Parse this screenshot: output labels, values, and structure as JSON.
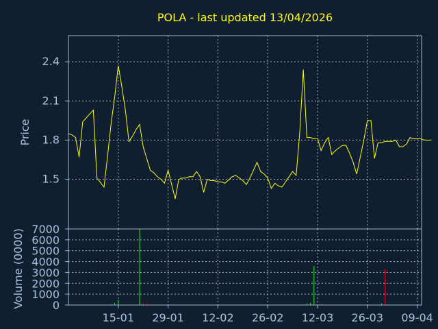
{
  "chart_data": {
    "type": "line",
    "title": "POLA - last updated 13/04/2026",
    "colors": {
      "background": "#0f1f30",
      "frame": "#9fb9d3",
      "grid": "#9fb9d3",
      "text": "#a8c4dc",
      "title": "#ffff00",
      "price_line": "#ffff00",
      "volume_up": "#00ff00",
      "volume_down": "#ff0000"
    },
    "grid": true,
    "x_tick_labels": [
      "15-01",
      "29-01",
      "12-02",
      "26-02",
      "12-03",
      "26-03",
      "09-04"
    ],
    "price_panel": {
      "ylabel": "Price",
      "ylim": [
        1.12,
        2.6
      ],
      "y_ticks": [
        1.5,
        1.8,
        2.1,
        2.4
      ],
      "y_tick_labels": [
        "1.5",
        "1.8",
        "2.1",
        "2.4"
      ],
      "series": [
        {
          "x": [
            "01-01",
            "02-01",
            "03-01",
            "04-01",
            "05-01",
            "06-01",
            "08-01",
            "09-01",
            "11-01",
            "12-01",
            "13-01",
            "14-01",
            "15-01",
            "16-01",
            "17-01",
            "18-01",
            "19-01",
            "20-01",
            "21-01",
            "22-01",
            "23-01",
            "24-01",
            "25-01",
            "26-01",
            "27-01",
            "28-01",
            "29-01",
            "31-01",
            "01-02",
            "02-02",
            "03-02",
            "04-02",
            "05-02",
            "06-02",
            "07-02",
            "08-02",
            "09-02",
            "10-02",
            "11-02",
            "12-02",
            "13-02",
            "14-02",
            "16-02",
            "17-02",
            "18-02",
            "19-02",
            "20-02",
            "21-02",
            "22-02",
            "23-02",
            "24-02",
            "25-02",
            "26-02",
            "27-02",
            "28-02",
            "01-03",
            "02-03",
            "03-03",
            "04-03",
            "05-03",
            "06-03",
            "07-03",
            "08-03",
            "09-03",
            "10-03",
            "11-03",
            "12-03",
            "13-03",
            "14-03",
            "15-03",
            "16-03",
            "17-03",
            "18-03",
            "19-03",
            "20-03",
            "21-03",
            "22-03",
            "23-03",
            "24-03",
            "25-03",
            "26-03",
            "27-03",
            "28-03",
            "29-03",
            "30-03",
            "31-03",
            "01-04",
            "02-04",
            "03-04",
            "04-04",
            "05-04",
            "06-04",
            "07-04",
            "08-04",
            "09-04",
            "10-04",
            "11-04",
            "12-04",
            "13-04"
          ],
          "values": [
            1.85,
            1.84,
            1.82,
            1.67,
            1.94,
            1.97,
            2.03,
            1.51,
            1.44,
            1.68,
            1.93,
            2.13,
            2.37,
            2.21,
            2.03,
            1.79,
            1.83,
            1.88,
            1.92,
            1.75,
            1.66,
            1.57,
            1.55,
            1.52,
            1.5,
            1.47,
            1.57,
            1.35,
            1.5,
            1.51,
            1.51,
            1.52,
            1.52,
            1.56,
            1.52,
            1.4,
            1.5,
            1.49,
            1.49,
            1.48,
            1.48,
            1.47,
            1.52,
            1.53,
            1.51,
            1.49,
            1.46,
            1.51,
            1.57,
            1.63,
            1.56,
            1.54,
            1.51,
            1.43,
            1.47,
            1.45,
            1.44,
            1.48,
            1.52,
            1.56,
            1.53,
            1.86,
            2.34,
            1.82,
            1.82,
            1.81,
            1.81,
            1.72,
            1.78,
            1.82,
            1.69,
            1.72,
            1.74,
            1.76,
            1.76,
            1.7,
            1.63,
            1.54,
            1.67,
            1.8,
            1.95,
            1.95,
            1.66,
            1.78,
            1.78,
            1.79,
            1.79,
            1.79,
            1.8,
            1.75,
            1.75,
            1.77,
            1.82,
            1.81,
            1.81,
            1.81,
            1.8,
            1.8,
            1.8
          ]
        }
      ]
    },
    "volume_panel": {
      "ylabel": "Volume (0000)",
      "ylim": [
        0,
        7000
      ],
      "y_ticks": [
        0,
        1000,
        2000,
        3000,
        4000,
        5000,
        6000,
        7000
      ],
      "y_tick_labels": [
        "0",
        "1000",
        "2000",
        "3000",
        "4000",
        "5000",
        "6000",
        "7000"
      ],
      "bars": [
        {
          "x": "14-01",
          "value": 200,
          "direction": "up"
        },
        {
          "x": "15-01",
          "value": 450,
          "direction": "up"
        },
        {
          "x": "21-01",
          "value": 7000,
          "direction": "up"
        },
        {
          "x": "22-01",
          "value": 200,
          "direction": "down"
        },
        {
          "x": "23-01",
          "value": 150,
          "direction": "down"
        },
        {
          "x": "30-01",
          "value": 80,
          "direction": "down"
        },
        {
          "x": "09-03",
          "value": 150,
          "direction": "up"
        },
        {
          "x": "10-03",
          "value": 200,
          "direction": "up"
        },
        {
          "x": "11-03",
          "value": 3600,
          "direction": "up"
        },
        {
          "x": "13-03",
          "value": 150,
          "direction": "down"
        },
        {
          "x": "30-03",
          "value": 150,
          "direction": "up"
        },
        {
          "x": "31-03",
          "value": 3300,
          "direction": "down"
        }
      ]
    }
  }
}
